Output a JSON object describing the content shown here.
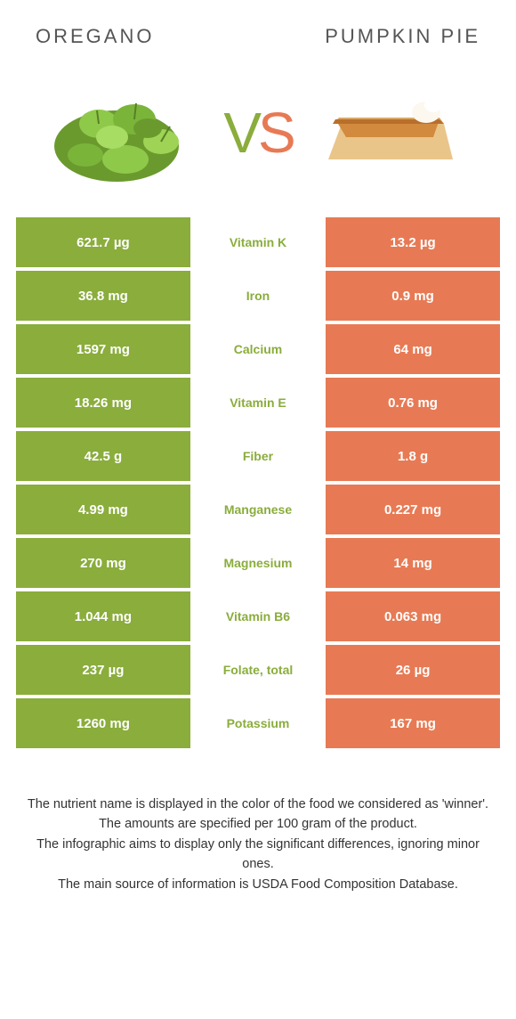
{
  "header": {
    "left": "Oregano",
    "right": "Pumpkin Pie"
  },
  "vs": {
    "v": "V",
    "s": "S"
  },
  "colors": {
    "left_bg": "#8aad3c",
    "right_bg": "#e77a54",
    "text_on_color": "#ffffff",
    "mid_text_left_winner": "#8aad3c",
    "mid_text_right_winner": "#e77a54"
  },
  "table": {
    "rows": [
      {
        "left": "621.7 µg",
        "label": "Vitamin K",
        "right": "13.2 µg",
        "winner": "left"
      },
      {
        "left": "36.8 mg",
        "label": "Iron",
        "right": "0.9 mg",
        "winner": "left"
      },
      {
        "left": "1597 mg",
        "label": "Calcium",
        "right": "64 mg",
        "winner": "left"
      },
      {
        "left": "18.26 mg",
        "label": "Vitamin E",
        "right": "0.76 mg",
        "winner": "left"
      },
      {
        "left": "42.5 g",
        "label": "Fiber",
        "right": "1.8 g",
        "winner": "left"
      },
      {
        "left": "4.99 mg",
        "label": "Manganese",
        "right": "0.227 mg",
        "winner": "left"
      },
      {
        "left": "270 mg",
        "label": "Magnesium",
        "right": "14 mg",
        "winner": "left"
      },
      {
        "left": "1.044 mg",
        "label": "Vitamin B6",
        "right": "0.063 mg",
        "winner": "left"
      },
      {
        "left": "237 µg",
        "label": "Folate, total",
        "right": "26 µg",
        "winner": "left"
      },
      {
        "left": "1260 mg",
        "label": "Potassium",
        "right": "167 mg",
        "winner": "left"
      }
    ]
  },
  "footer": {
    "line1": "The nutrient name is displayed in the color of the food we considered as 'winner'.",
    "line2": "The amounts are specified per 100 gram of the product.",
    "line3": "The infographic aims to display only the significant differences, ignoring minor ones.",
    "line4": "The main source of information is USDA Food Composition Database."
  }
}
